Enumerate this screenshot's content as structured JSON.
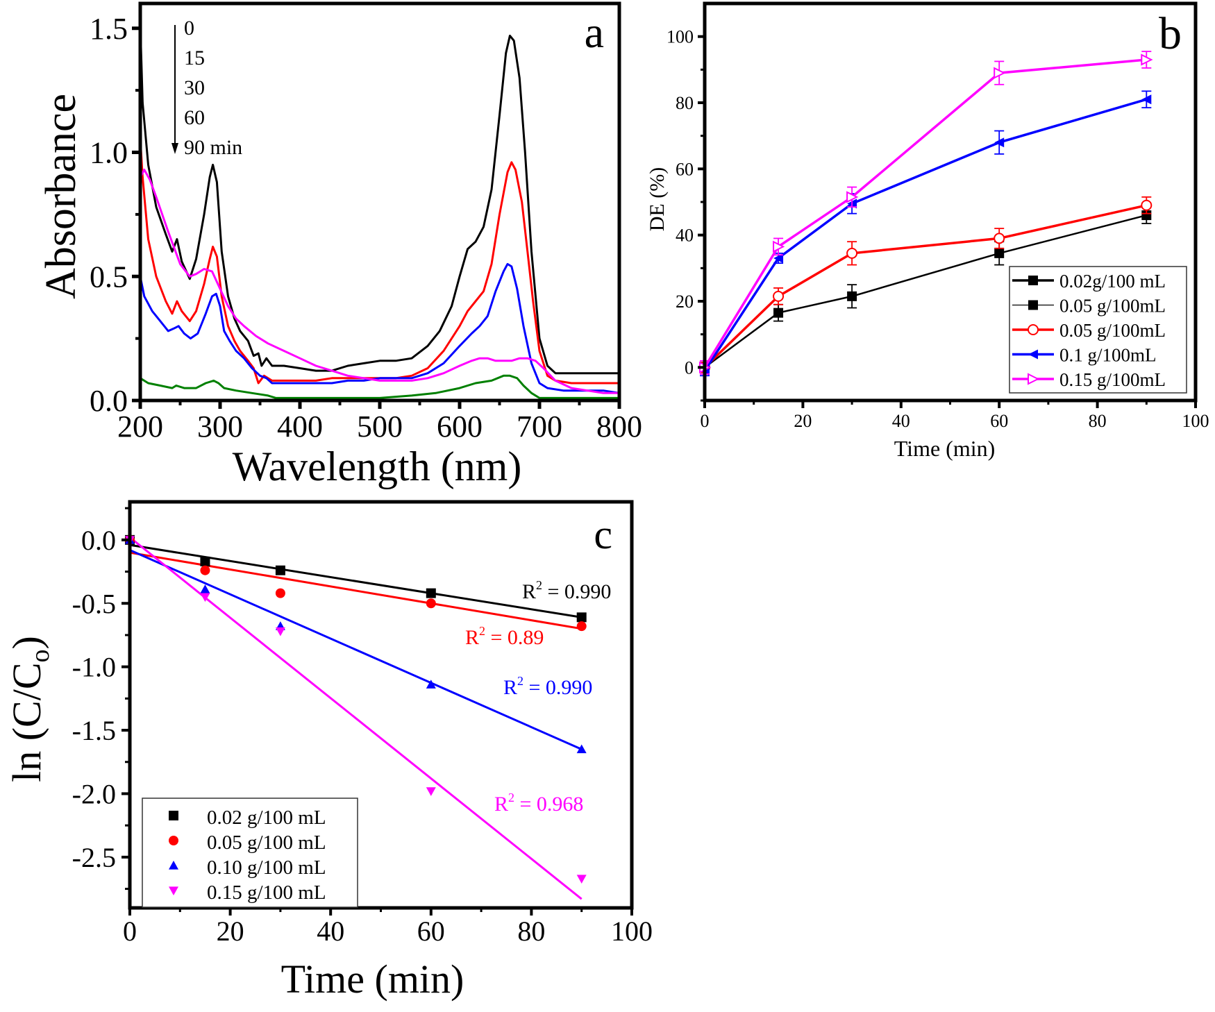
{
  "chart_data": [
    {
      "id": "a",
      "type": "line",
      "panel_label": "a",
      "title": "",
      "xlabel": "Wavelength (nm)",
      "ylabel": "Absorbance",
      "xlim": [
        200,
        800
      ],
      "ylim": [
        0,
        1.6
      ],
      "xticks": [
        200,
        300,
        400,
        500,
        600,
        700,
        800
      ],
      "yticks": [
        0.0,
        0.5,
        1.0,
        1.5
      ],
      "ytick_labels": [
        "0.0",
        "0.5",
        "1.0",
        "1.5"
      ],
      "annotation": {
        "arrow": "down",
        "labels": [
          "0",
          "15",
          "30",
          "60",
          "90 min"
        ]
      },
      "series": [
        {
          "name": "0 min",
          "color": "#000000",
          "x": [
            200,
            203,
            210,
            220,
            232,
            240,
            246,
            252,
            262,
            270,
            280,
            287,
            291,
            296,
            302,
            310,
            318,
            325,
            335,
            342,
            348,
            352,
            358,
            365,
            380,
            400,
            420,
            440,
            460,
            480,
            500,
            520,
            540,
            560,
            575,
            590,
            600,
            610,
            620,
            630,
            640,
            650,
            658,
            663,
            668,
            675,
            682,
            690,
            700,
            710,
            720,
            740,
            760,
            780,
            800
          ],
          "y": [
            1.52,
            1.2,
            0.95,
            0.78,
            0.67,
            0.6,
            0.65,
            0.56,
            0.49,
            0.57,
            0.75,
            0.9,
            0.95,
            0.88,
            0.6,
            0.42,
            0.33,
            0.28,
            0.24,
            0.18,
            0.19,
            0.14,
            0.17,
            0.14,
            0.14,
            0.13,
            0.12,
            0.12,
            0.14,
            0.15,
            0.16,
            0.16,
            0.17,
            0.22,
            0.28,
            0.38,
            0.5,
            0.61,
            0.64,
            0.7,
            0.85,
            1.15,
            1.4,
            1.47,
            1.45,
            1.3,
            1.0,
            0.6,
            0.25,
            0.14,
            0.11,
            0.11,
            0.11,
            0.11,
            0.11
          ]
        },
        {
          "name": "15 min",
          "color": "#ff0000",
          "x": [
            200,
            203,
            210,
            220,
            232,
            240,
            246,
            252,
            262,
            270,
            280,
            287,
            291,
            296,
            302,
            310,
            318,
            325,
            335,
            342,
            348,
            355,
            365,
            380,
            400,
            420,
            440,
            460,
            480,
            500,
            520,
            540,
            560,
            580,
            600,
            610,
            620,
            630,
            640,
            650,
            660,
            665,
            670,
            678,
            685,
            692,
            700,
            710,
            720,
            740,
            760,
            780,
            800
          ],
          "y": [
            1.06,
            0.9,
            0.65,
            0.5,
            0.4,
            0.35,
            0.4,
            0.36,
            0.32,
            0.36,
            0.47,
            0.57,
            0.62,
            0.58,
            0.42,
            0.3,
            0.24,
            0.2,
            0.16,
            0.13,
            0.07,
            0.1,
            0.08,
            0.08,
            0.08,
            0.08,
            0.09,
            0.09,
            0.09,
            0.09,
            0.09,
            0.1,
            0.13,
            0.2,
            0.3,
            0.36,
            0.4,
            0.44,
            0.55,
            0.75,
            0.92,
            0.96,
            0.93,
            0.8,
            0.6,
            0.4,
            0.2,
            0.1,
            0.08,
            0.07,
            0.07,
            0.07,
            0.07
          ]
        },
        {
          "name": "30 min",
          "color": "#0000ff",
          "x": [
            200,
            205,
            215,
            225,
            235,
            242,
            248,
            255,
            263,
            272,
            282,
            290,
            295,
            300,
            305,
            312,
            320,
            330,
            340,
            350,
            358,
            365,
            380,
            400,
            420,
            440,
            460,
            480,
            500,
            520,
            540,
            560,
            580,
            600,
            615,
            625,
            635,
            645,
            655,
            660,
            665,
            672,
            680,
            690,
            700,
            710,
            730,
            760,
            780,
            800
          ],
          "y": [
            0.5,
            0.42,
            0.36,
            0.32,
            0.28,
            0.29,
            0.3,
            0.27,
            0.25,
            0.27,
            0.35,
            0.42,
            0.43,
            0.38,
            0.28,
            0.24,
            0.2,
            0.17,
            0.13,
            0.1,
            0.09,
            0.07,
            0.07,
            0.07,
            0.07,
            0.07,
            0.08,
            0.08,
            0.09,
            0.09,
            0.09,
            0.11,
            0.15,
            0.22,
            0.27,
            0.3,
            0.34,
            0.44,
            0.52,
            0.55,
            0.54,
            0.45,
            0.3,
            0.15,
            0.07,
            0.05,
            0.04,
            0.04,
            0.04,
            0.03
          ]
        },
        {
          "name": "60 min",
          "color": "#ff00ff",
          "x": [
            200,
            205,
            212,
            220,
            235,
            250,
            262,
            270,
            280,
            290,
            300,
            310,
            320,
            330,
            345,
            360,
            380,
            400,
            420,
            440,
            460,
            480,
            500,
            520,
            540,
            560,
            580,
            600,
            615,
            625,
            635,
            645,
            655,
            665,
            675,
            685,
            695,
            705,
            720,
            740,
            760,
            780,
            800
          ],
          "y": [
            0.9,
            0.93,
            0.89,
            0.82,
            0.68,
            0.55,
            0.5,
            0.51,
            0.53,
            0.52,
            0.45,
            0.38,
            0.33,
            0.3,
            0.26,
            0.23,
            0.2,
            0.17,
            0.14,
            0.12,
            0.1,
            0.09,
            0.08,
            0.08,
            0.08,
            0.09,
            0.11,
            0.14,
            0.16,
            0.17,
            0.17,
            0.16,
            0.16,
            0.16,
            0.17,
            0.17,
            0.16,
            0.13,
            0.08,
            0.05,
            0.04,
            0.03,
            0.03
          ]
        },
        {
          "name": "90 min",
          "color": "#008000",
          "x": [
            200,
            210,
            225,
            240,
            245,
            255,
            270,
            282,
            292,
            298,
            305,
            320,
            340,
            360,
            370,
            400,
            450,
            500,
            540,
            570,
            600,
            620,
            640,
            655,
            663,
            672,
            680,
            690,
            700,
            720,
            760,
            800
          ],
          "y": [
            0.09,
            0.07,
            0.06,
            0.05,
            0.06,
            0.05,
            0.05,
            0.07,
            0.08,
            0.07,
            0.05,
            0.04,
            0.03,
            0.02,
            0.01,
            0.01,
            0.01,
            0.01,
            0.02,
            0.03,
            0.05,
            0.07,
            0.08,
            0.1,
            0.1,
            0.09,
            0.06,
            0.03,
            0.01,
            0.01,
            0.01,
            0.01
          ]
        }
      ]
    },
    {
      "id": "b",
      "type": "line",
      "panel_label": "b",
      "title": "",
      "xlabel": "Time (min)",
      "ylabel": "DE (%)",
      "xlim": [
        0,
        100
      ],
      "ylim": [
        -10,
        110
      ],
      "xticks": [
        0,
        20,
        40,
        60,
        80,
        100
      ],
      "yticks": [
        0,
        20,
        40,
        60,
        80,
        100
      ],
      "legend_position": "bottom-right",
      "legend": [
        {
          "label": "0.02g/100 mL",
          "color": "#000000",
          "marker": "square-filled",
          "line": "thick"
        },
        {
          "label": "0.05 g/100mL",
          "color": "#000000",
          "marker": "square-filled",
          "line": "thin"
        },
        {
          "label": "0.05 g/100mL",
          "color": "#ff0000",
          "marker": "circle-open",
          "line": "thick"
        },
        {
          "label": "0.1 g/100mL",
          "color": "#0000ff",
          "marker": "triangle-left-filled",
          "line": "thick"
        },
        {
          "label": "0.15 g/100mL",
          "color": "#ff00ff",
          "marker": "triangle-right-open",
          "line": "thick"
        }
      ],
      "x": [
        0,
        15,
        30,
        60,
        90
      ],
      "series": [
        {
          "name": "0.02g/100 mL",
          "color": "#000000",
          "marker": "square-filled",
          "values": [
            0,
            16.5,
            21.5,
            34.5,
            46
          ],
          "errors": [
            1.5,
            2.5,
            3.5,
            3.5,
            2.5
          ]
        },
        {
          "name": "0.05 g/100mL",
          "color": "#ff0000",
          "marker": "circle-open",
          "values": [
            0,
            21.5,
            34.5,
            39,
            49
          ],
          "errors": [
            1.5,
            2.5,
            3.5,
            3.0,
            2.5
          ]
        },
        {
          "name": "0.1 g/100mL",
          "color": "#0000ff",
          "marker": "triangle-left-filled",
          "values": [
            -1,
            33,
            49.5,
            68,
            81
          ],
          "errors": [
            1.5,
            1.5,
            3.0,
            3.5,
            2.5
          ]
        },
        {
          "name": "0.15 g/100mL",
          "color": "#ff00ff",
          "marker": "triangle-right-open",
          "values": [
            0,
            36.5,
            51.5,
            89,
            93
          ],
          "errors": [
            2.0,
            2.5,
            3.0,
            3.5,
            2.5
          ]
        }
      ]
    },
    {
      "id": "c",
      "type": "scatter",
      "panel_label": "c",
      "title": "",
      "xlabel": "Time (min)",
      "ylabel": "ln (C/Co)",
      "xlim": [
        0,
        100
      ],
      "ylim": [
        -2.9,
        0.3
      ],
      "xticks": [
        0,
        20,
        40,
        60,
        80,
        100
      ],
      "yticks": [
        0.0,
        -0.5,
        -1.0,
        -1.5,
        -2.0,
        -2.5
      ],
      "ytick_labels": [
        "0.0",
        "-0.5",
        "-1.0",
        "-1.5",
        "-2.0",
        "-2.5"
      ],
      "legend_position": "bottom-left",
      "x": [
        0,
        15,
        30,
        60,
        90
      ],
      "series": [
        {
          "name": "0.02 g/100 mL",
          "color": "#000000",
          "marker": "square",
          "values": [
            0,
            -0.17,
            -0.24,
            -0.42,
            -0.61
          ],
          "fit": {
            "x": [
              0,
              90
            ],
            "y": [
              -0.04,
              -0.61
            ]
          },
          "r2_label": "R² = 0.990",
          "r2_text": "R",
          "r2_value": " = 0.990"
        },
        {
          "name": "0.05 g/100 mL",
          "color": "#ff0000",
          "marker": "circle",
          "values": [
            0,
            -0.24,
            -0.42,
            -0.5,
            -0.68
          ],
          "fit": {
            "x": [
              0,
              90
            ],
            "y": [
              -0.1,
              -0.7
            ]
          },
          "r2_label": "R² = 0.89",
          "r2_text": "R",
          "r2_value": " = 0.89"
        },
        {
          "name": "0.10 g/100 mL",
          "color": "#0000ff",
          "marker": "triangle-up",
          "values": [
            0,
            -0.39,
            -0.68,
            -1.14,
            -1.65
          ],
          "fit": {
            "x": [
              0,
              90
            ],
            "y": [
              -0.08,
              -1.65
            ]
          },
          "r2_label": "R² = 0.990",
          "r2_text": "R",
          "r2_value": " = 0.990"
        },
        {
          "name": "0.15 g/100 mL",
          "color": "#ff00ff",
          "marker": "triangle-down",
          "values": [
            0,
            -0.45,
            -0.72,
            -1.98,
            -2.67
          ],
          "fit": {
            "x": [
              0,
              90
            ],
            "y": [
              0.02,
              -2.83
            ]
          },
          "r2_label": "R² = 0.968",
          "r2_text": "R",
          "r2_value": " = 0.968"
        }
      ]
    }
  ]
}
